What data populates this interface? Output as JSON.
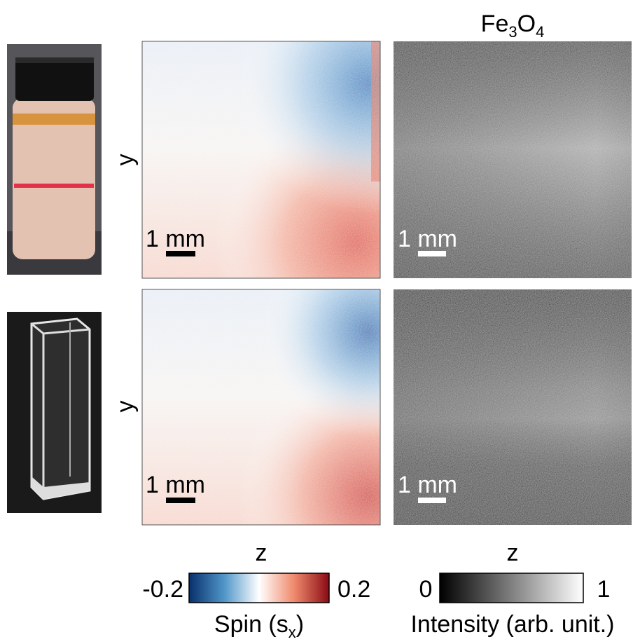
{
  "title": [
    "Fe",
    "3",
    "O",
    "4"
  ],
  "row_axis_labels": [
    "y",
    "y"
  ],
  "column_axis_labels": [
    "z",
    "z"
  ],
  "panels": [
    {
      "scale_bar": "1 mm"
    },
    {
      "scale_bar": "1 mm"
    },
    {
      "scale_bar": "1 mm"
    },
    {
      "scale_bar": "1 mm"
    }
  ],
  "colorbars": [
    {
      "min": "-0.2",
      "max": "0.2",
      "label": [
        "Spin (s",
        "x",
        ")"
      ]
    },
    {
      "min": "0",
      "max": "1",
      "label": [
        "Intensity (arb. unit.)"
      ]
    }
  ]
}
